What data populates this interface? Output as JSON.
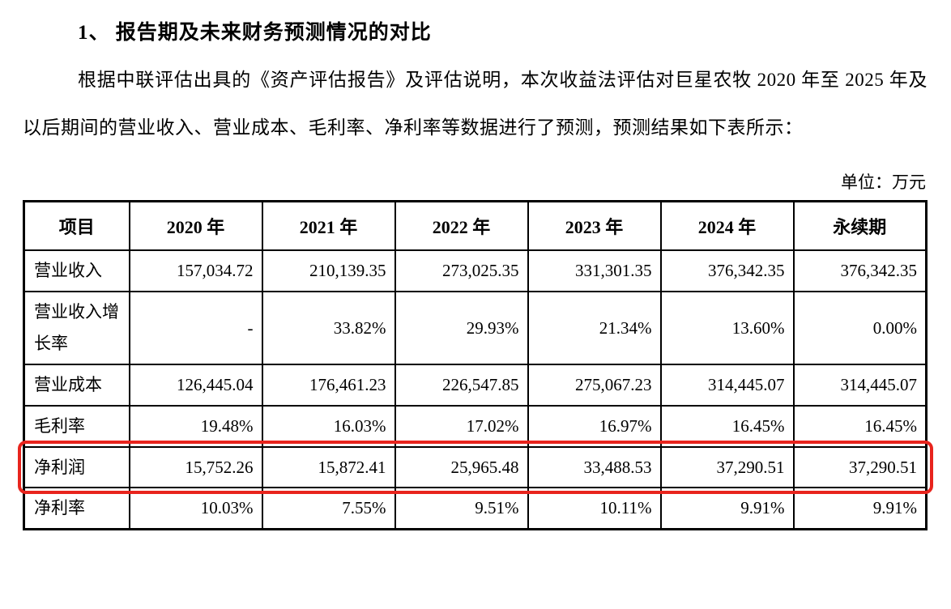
{
  "doc": {
    "heading": "1、 报告期及未来财务预测情况的对比",
    "paragraph": "根据中联评估出具的《资产评估报告》及评估说明，本次收益法评估对巨星农牧 2020 年至 2025 年及以后期间的营业收入、营业成本、毛利率、净利率等数据进行了预测，预测结果如下表所示：",
    "unit_label": "单位：万元"
  },
  "table": {
    "headers": [
      "项目",
      "2020 年",
      "2021 年",
      "2022 年",
      "2023 年",
      "2024 年",
      "永续期"
    ],
    "rows": [
      {
        "label": "营业收入",
        "values": [
          "157,034.72",
          "210,139.35",
          "273,025.35",
          "331,301.35",
          "376,342.35",
          "376,342.35"
        ]
      },
      {
        "label": "营业收入增长率",
        "values": [
          "-",
          "33.82%",
          "29.93%",
          "21.34%",
          "13.60%",
          "0.00%"
        ]
      },
      {
        "label": "营业成本",
        "values": [
          "126,445.04",
          "176,461.23",
          "226,547.85",
          "275,067.23",
          "314,445.07",
          "314,445.07"
        ]
      },
      {
        "label": "毛利率",
        "values": [
          "19.48%",
          "16.03%",
          "17.02%",
          "16.97%",
          "16.45%",
          "16.45%"
        ]
      },
      {
        "label": "净利润",
        "values": [
          "15,752.26",
          "15,872.41",
          "25,965.48",
          "33,488.53",
          "37,290.51",
          "37,290.51"
        ]
      },
      {
        "label": "净利率",
        "values": [
          "10.03%",
          "7.55%",
          "9.51%",
          "10.11%",
          "9.91%",
          "9.91%"
        ]
      }
    ]
  },
  "annotation": {
    "highlighted_row_label": "净利润",
    "highlight_color": "#e8241d"
  }
}
